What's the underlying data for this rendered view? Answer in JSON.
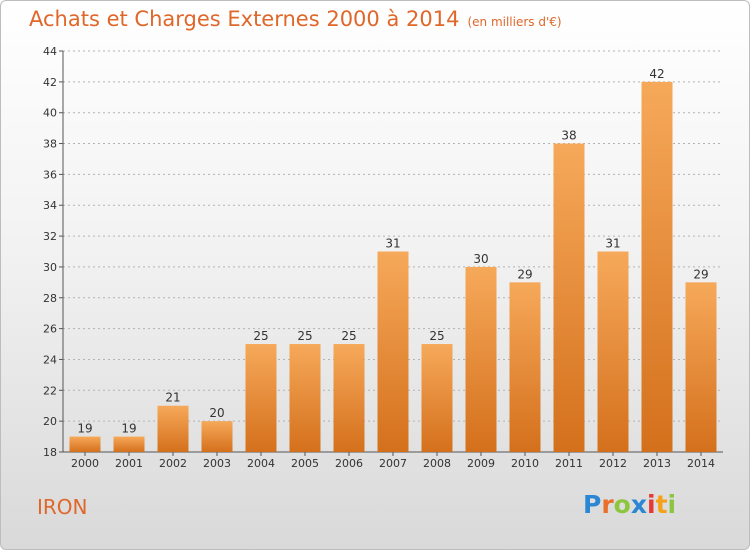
{
  "header": {
    "title": "Achats et Charges Externes 2000 à 2014",
    "subtitle": "(en milliers d'€)"
  },
  "footer": {
    "commune": "IRON",
    "brand": "Proxiti",
    "brand_colors": [
      "#2b86d4",
      "#e8702a",
      "#8cc63f",
      "#2b86d4",
      "#e53935",
      "#f4a21c",
      "#8cc63f"
    ]
  },
  "colors": {
    "accent": "#e0672a",
    "bar_top": "#f6a95a",
    "bar_bottom": "#d4701c",
    "grid": "#b3b3b3"
  },
  "chart_data": {
    "type": "bar",
    "title": "Achats et Charges Externes 2000 à 2014",
    "subtitle": "(en milliers d'€)",
    "categories": [
      "2000",
      "2001",
      "2002",
      "2003",
      "2004",
      "2005",
      "2006",
      "2007",
      "2008",
      "2009",
      "2010",
      "2011",
      "2012",
      "2013",
      "2014"
    ],
    "values": [
      19,
      19,
      21,
      20,
      25,
      25,
      25,
      31,
      25,
      30,
      29,
      38,
      31,
      42,
      29
    ],
    "ylim": [
      18,
      44
    ],
    "yticks": [
      18,
      20,
      22,
      24,
      26,
      28,
      30,
      32,
      34,
      36,
      38,
      40,
      42,
      44
    ],
    "grid": true,
    "xlabel": "",
    "ylabel": ""
  }
}
